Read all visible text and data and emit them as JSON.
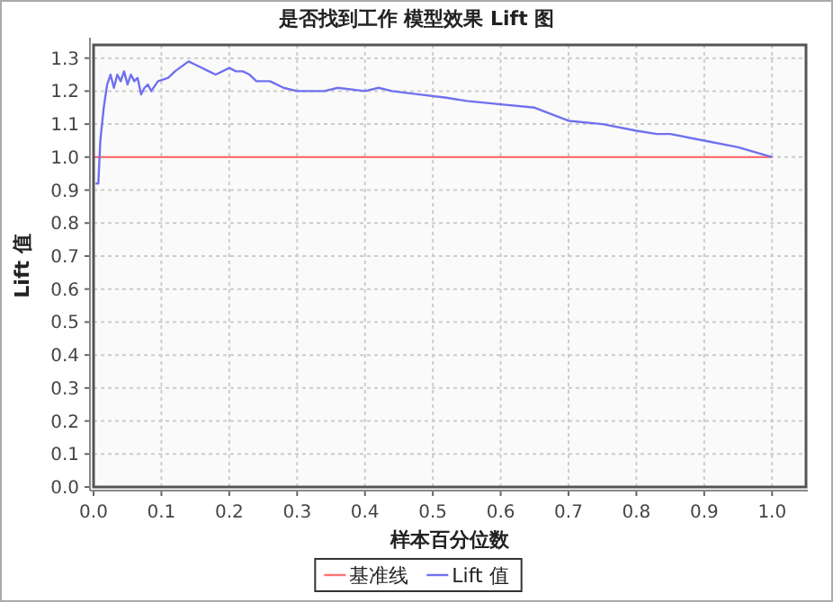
{
  "chart_data": {
    "type": "line",
    "title": "是否找到工作 模型效果 Lift 图",
    "xlabel": "样本百分位数",
    "ylabel": "Lift 值",
    "xlim": [
      0,
      1.05
    ],
    "ylim": [
      0,
      1.34
    ],
    "xticks": [
      {
        "value": 0,
        "label": "0.0"
      },
      0.1,
      0.2,
      0.3,
      0.4,
      0.5,
      0.6,
      0.7,
      0.8,
      0.9,
      {
        "value": 1,
        "label": "1.0"
      }
    ],
    "yticks": [
      {
        "value": 0,
        "label": "0.0"
      },
      0.1,
      0.2,
      0.3,
      0.4,
      0.5,
      0.6,
      0.7,
      0.8,
      0.9,
      {
        "value": 1,
        "label": "1.0"
      },
      1.1,
      1.2,
      1.3
    ],
    "grid": true,
    "legend": "bottom",
    "series": [
      {
        "name": "基准线",
        "color": "#ff7070",
        "x": [
          0,
          1
        ],
        "values": [
          1,
          1
        ]
      },
      {
        "name": "Lift 值",
        "color": "#7070f0",
        "x": [
          0.003,
          0.007,
          0.01,
          0.015,
          0.02,
          0.025,
          0.03,
          0.035,
          0.04,
          0.045,
          0.05,
          0.055,
          0.06,
          0.065,
          0.07,
          0.075,
          0.08,
          0.085,
          0.095,
          0.11,
          0.12,
          0.14,
          0.15,
          0.17,
          0.18,
          0.2,
          0.21,
          0.22,
          0.23,
          0.24,
          0.26,
          0.28,
          0.3,
          0.34,
          0.36,
          0.4,
          0.42,
          0.44,
          0.48,
          0.52,
          0.55,
          0.6,
          0.65,
          0.7,
          0.75,
          0.8,
          0.83,
          0.85,
          0.9,
          0.95,
          1.0
        ],
        "values": [
          0.92,
          0.92,
          1.05,
          1.15,
          1.22,
          1.25,
          1.21,
          1.25,
          1.23,
          1.26,
          1.22,
          1.25,
          1.23,
          1.24,
          1.19,
          1.21,
          1.22,
          1.2,
          1.23,
          1.24,
          1.26,
          1.29,
          1.28,
          1.26,
          1.25,
          1.27,
          1.26,
          1.26,
          1.25,
          1.23,
          1.23,
          1.21,
          1.2,
          1.2,
          1.21,
          1.2,
          1.21,
          1.2,
          1.19,
          1.18,
          1.17,
          1.16,
          1.15,
          1.11,
          1.1,
          1.08,
          1.07,
          1.07,
          1.05,
          1.03,
          1.0
        ]
      }
    ]
  }
}
